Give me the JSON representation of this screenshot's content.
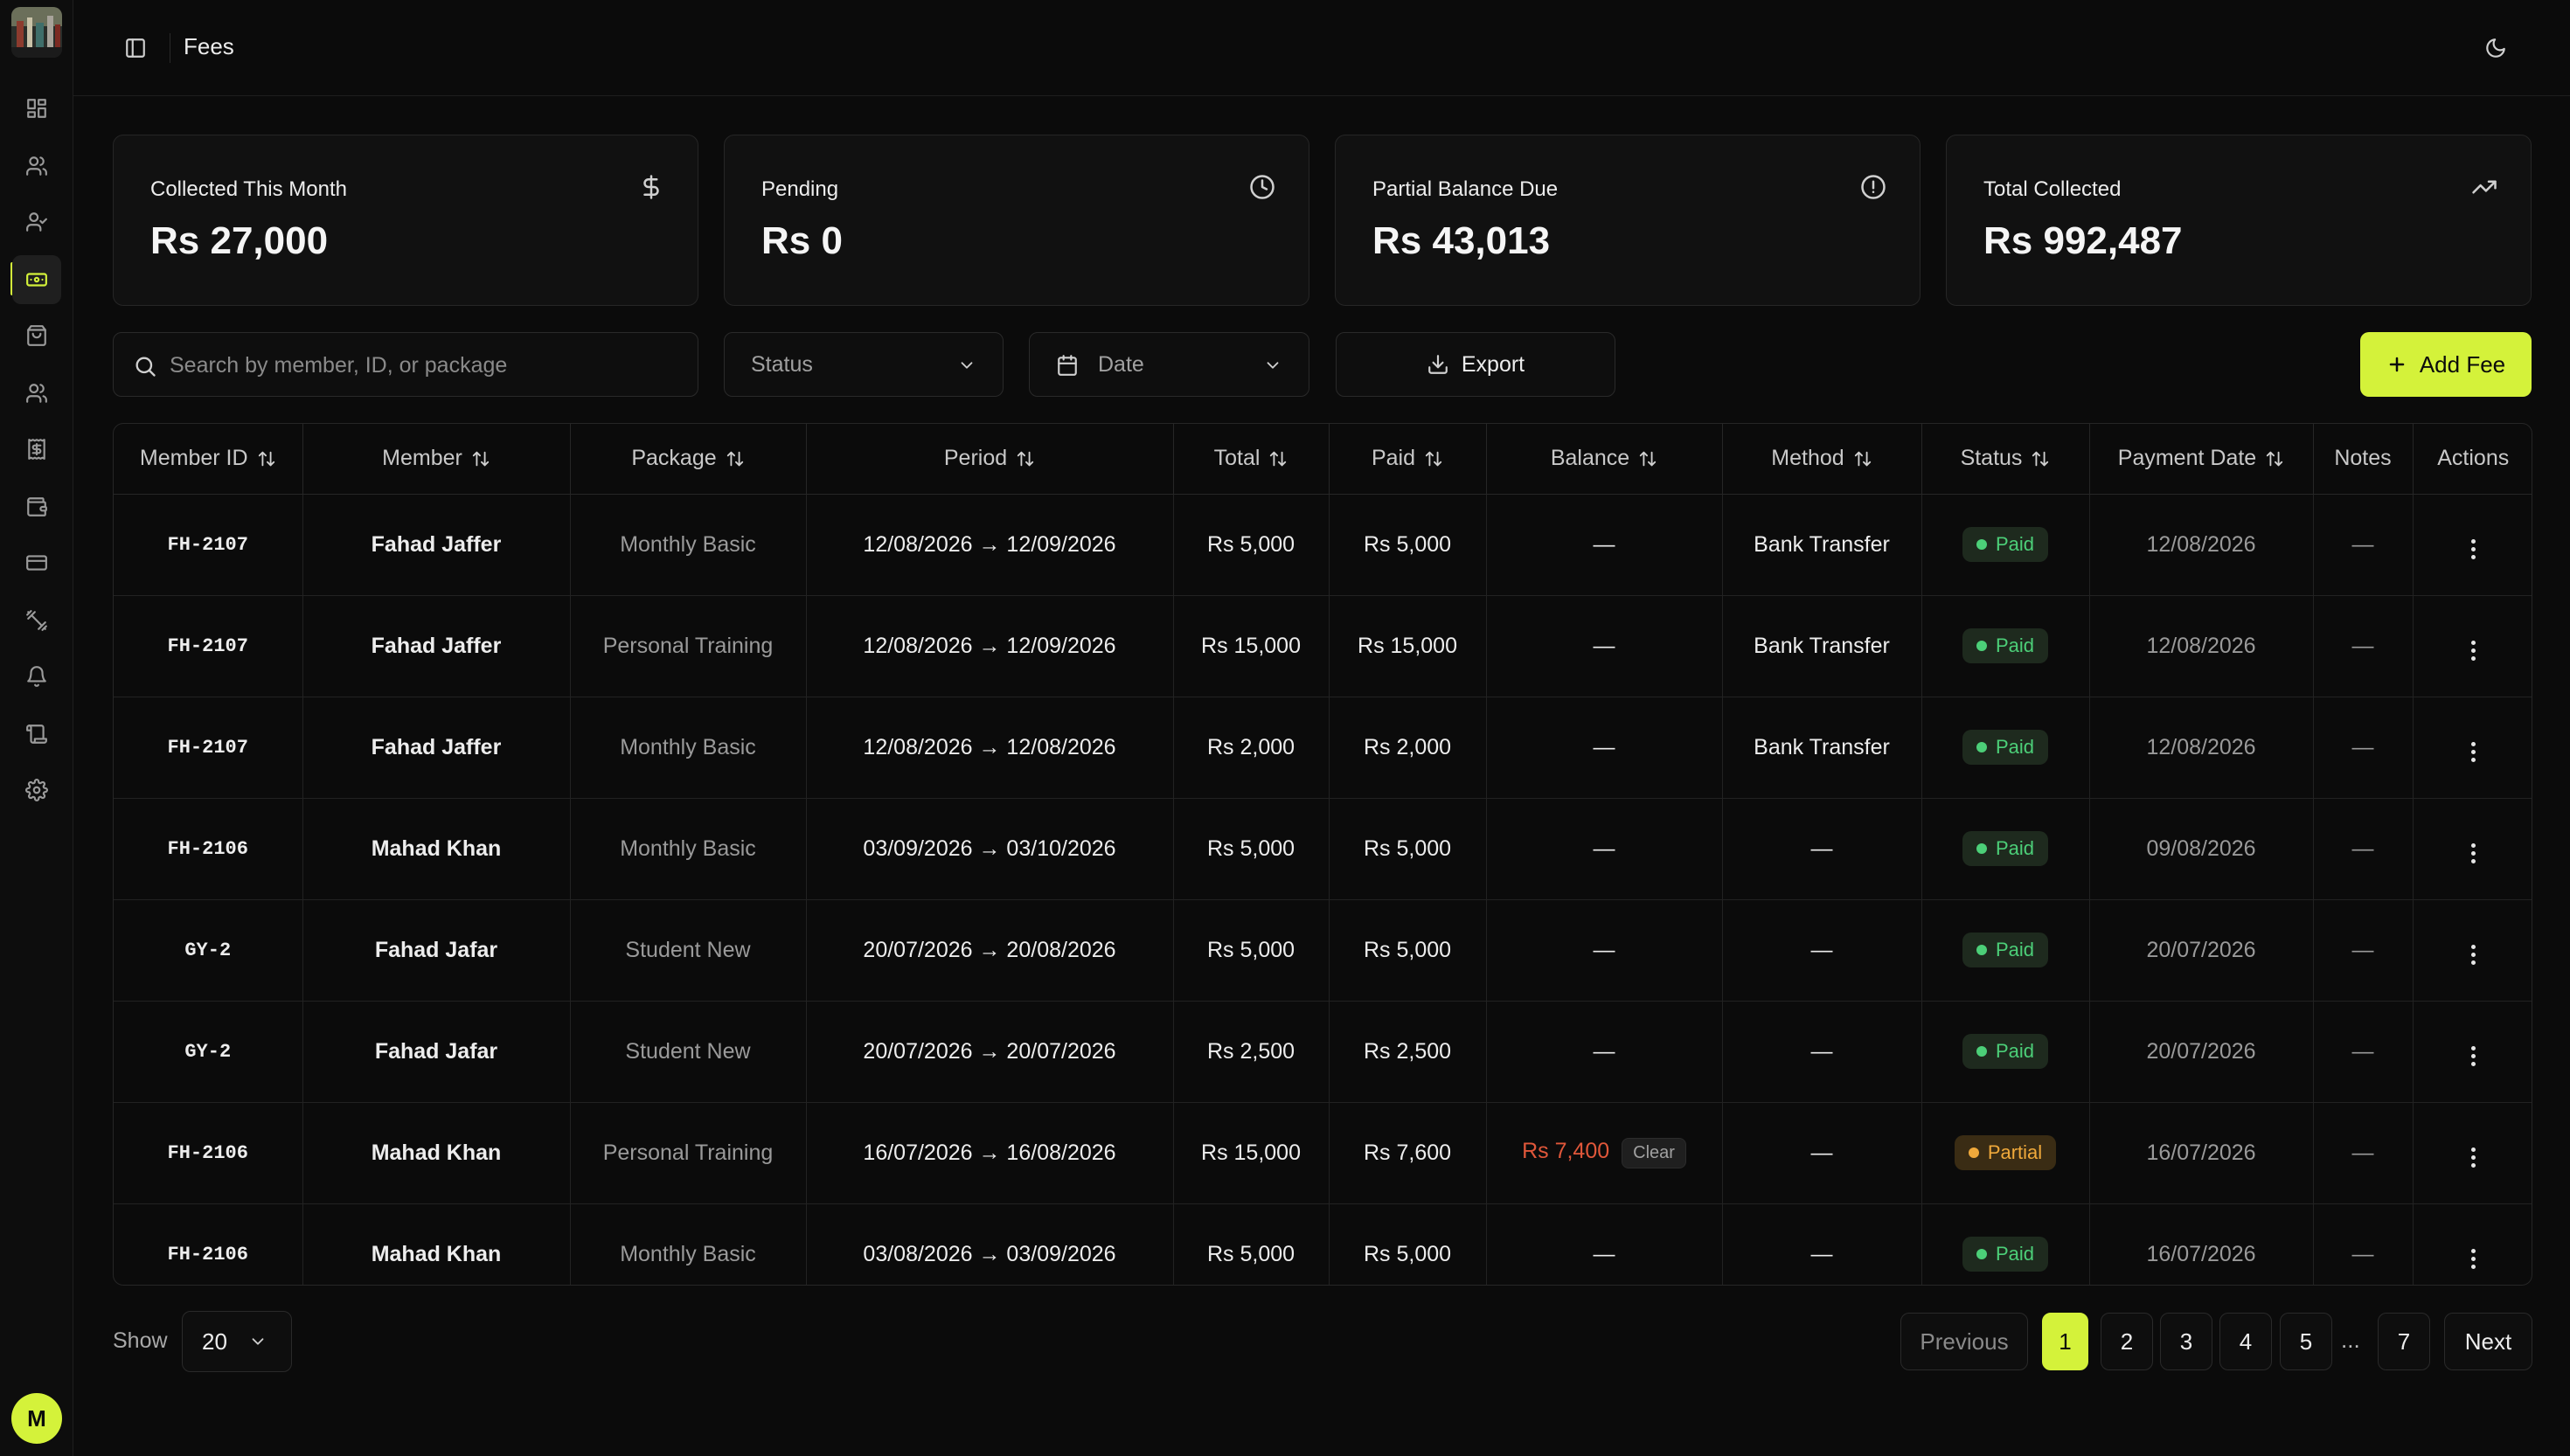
{
  "page": {
    "title": "Fees"
  },
  "colors": {
    "accent": "#d4f23a",
    "paid": "#4ccf78",
    "partial": "#f0a93b",
    "balance_due": "#e0573a"
  },
  "sidebar": {
    "items": [
      {
        "name": "dashboard",
        "icon": "grid-icon"
      },
      {
        "name": "members",
        "icon": "users-icon"
      },
      {
        "name": "attendance",
        "icon": "user-check-icon"
      },
      {
        "name": "fees",
        "icon": "banknote-icon",
        "active": true
      },
      {
        "name": "shop",
        "icon": "shopping-bag-icon"
      },
      {
        "name": "staff",
        "icon": "users-icon"
      },
      {
        "name": "invoices",
        "icon": "receipt-icon"
      },
      {
        "name": "wallet",
        "icon": "wallet-icon"
      },
      {
        "name": "payments",
        "icon": "credit-card-icon"
      },
      {
        "name": "equipment",
        "icon": "dumbbell-icon"
      },
      {
        "name": "notifications",
        "icon": "bell-icon"
      },
      {
        "name": "logs",
        "icon": "scroll-icon"
      },
      {
        "name": "settings",
        "icon": "gear-icon"
      }
    ],
    "avatar_initial": "M"
  },
  "stats": [
    {
      "label": "Collected This Month",
      "value": "Rs 27,000",
      "icon": "dollar-icon"
    },
    {
      "label": "Pending",
      "value": "Rs 0",
      "icon": "clock-icon"
    },
    {
      "label": "Partial Balance Due",
      "value": "Rs 43,013",
      "icon": "alert-circle-icon"
    },
    {
      "label": "Total Collected",
      "value": "Rs 992,487",
      "icon": "trending-up-icon"
    }
  ],
  "toolbar": {
    "search_placeholder": "Search by member, ID, or package",
    "status_label": "Status",
    "date_label": "Date",
    "export_label": "Export",
    "add_label": "Add Fee"
  },
  "table": {
    "headers": [
      "Member ID",
      "Member",
      "Package",
      "Period",
      "Total",
      "Paid",
      "Balance",
      "Method",
      "Status",
      "Payment Date",
      "Notes",
      "Actions"
    ],
    "rows": [
      {
        "member_id": "FH-2107",
        "member": "Fahad Jaffer",
        "package": "Monthly Basic",
        "period": "12/08/2026 → 12/09/2026",
        "total": "Rs 5,000",
        "paid": "Rs 5,000",
        "balance": "—",
        "method": "Bank Transfer",
        "status": "Paid",
        "payment_date": "12/08/2026",
        "notes": "—"
      },
      {
        "member_id": "FH-2107",
        "member": "Fahad Jaffer",
        "package": "Personal Training",
        "period": "12/08/2026 → 12/09/2026",
        "total": "Rs 15,000",
        "paid": "Rs 15,000",
        "balance": "—",
        "method": "Bank Transfer",
        "status": "Paid",
        "payment_date": "12/08/2026",
        "notes": "—"
      },
      {
        "member_id": "FH-2107",
        "member": "Fahad Jaffer",
        "package": "Monthly Basic",
        "period": "12/08/2026 → 12/08/2026",
        "total": "Rs 2,000",
        "paid": "Rs 2,000",
        "balance": "—",
        "method": "Bank Transfer",
        "status": "Paid",
        "payment_date": "12/08/2026",
        "notes": "—"
      },
      {
        "member_id": "FH-2106",
        "member": "Mahad Khan",
        "package": "Monthly Basic",
        "period": "03/09/2026 → 03/10/2026",
        "total": "Rs 5,000",
        "paid": "Rs 5,000",
        "balance": "—",
        "method": "—",
        "status": "Paid",
        "payment_date": "09/08/2026",
        "notes": "—"
      },
      {
        "member_id": "GY-2",
        "member": "Fahad Jafar",
        "package": "Student New",
        "period": "20/07/2026 → 20/08/2026",
        "total": "Rs 5,000",
        "paid": "Rs 5,000",
        "balance": "—",
        "method": "—",
        "status": "Paid",
        "payment_date": "20/07/2026",
        "notes": "—"
      },
      {
        "member_id": "GY-2",
        "member": "Fahad Jafar",
        "package": "Student New",
        "period": "20/07/2026 → 20/07/2026",
        "total": "Rs 2,500",
        "paid": "Rs 2,500",
        "balance": "—",
        "method": "—",
        "status": "Paid",
        "payment_date": "20/07/2026",
        "notes": "—"
      },
      {
        "member_id": "FH-2106",
        "member": "Mahad Khan",
        "package": "Personal Training",
        "period": "16/07/2026 → 16/08/2026",
        "total": "Rs 15,000",
        "paid": "Rs 7,600",
        "balance": "Rs 7,400",
        "balance_action": "Clear",
        "method": "—",
        "status": "Partial",
        "payment_date": "16/07/2026",
        "notes": "—"
      },
      {
        "member_id": "FH-2106",
        "member": "Mahad Khan",
        "package": "Monthly Basic",
        "period": "03/08/2026 → 03/09/2026",
        "total": "Rs 5,000",
        "paid": "Rs 5,000",
        "balance": "—",
        "method": "—",
        "status": "Paid",
        "payment_date": "16/07/2026",
        "notes": "—"
      }
    ]
  },
  "pagination": {
    "show_label": "Show",
    "page_size": "20",
    "previous": "Previous",
    "next": "Next",
    "pages": [
      "1",
      "2",
      "3",
      "4",
      "5"
    ],
    "ellipsis": "...",
    "last_page": "7",
    "current": "1"
  }
}
